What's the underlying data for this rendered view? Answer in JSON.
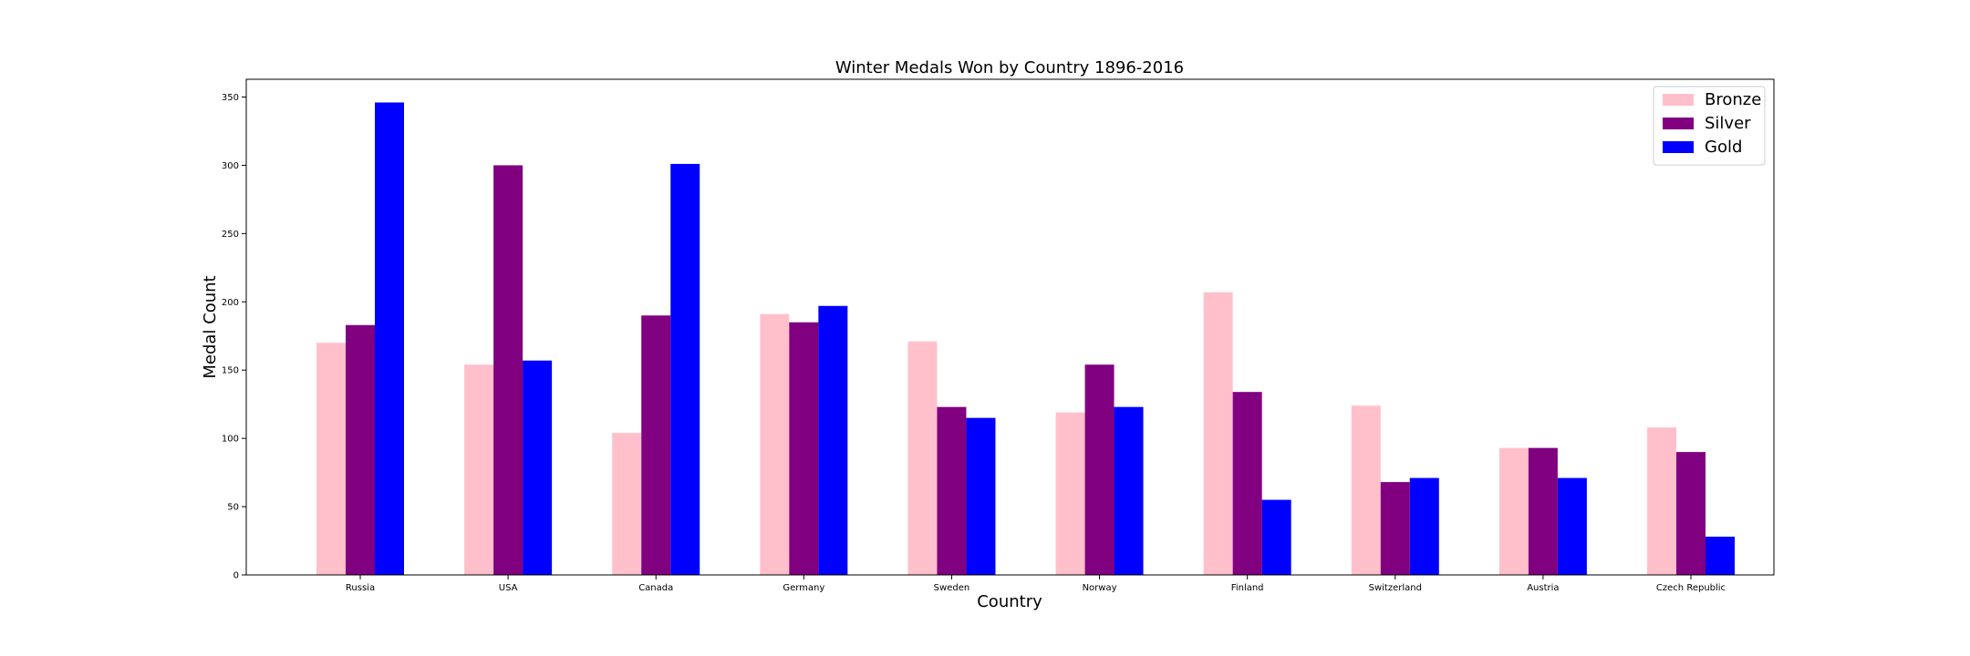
{
  "chart_data": {
    "type": "bar",
    "title": "Winter Medals Won by Country 1896-2016",
    "xlabel": "Country",
    "ylabel": "Medal Count",
    "categories": [
      "Russia",
      "USA",
      "Canada",
      "Germany",
      "Sweden",
      "Norway",
      "Finland",
      "Switzerland",
      "Austria",
      "Czech Republic"
    ],
    "series": [
      {
        "name": "Bronze",
        "color": "#ffc0cb",
        "values": [
          170,
          154,
          104,
          191,
          171,
          119,
          207,
          124,
          93,
          108
        ]
      },
      {
        "name": "Silver",
        "color": "#800080",
        "values": [
          183,
          300,
          190,
          185,
          123,
          154,
          134,
          68,
          93,
          90
        ]
      },
      {
        "name": "Gold",
        "color": "#0000ff",
        "values": [
          346,
          157,
          301,
          197,
          115,
          123,
          55,
          71,
          71,
          28
        ]
      }
    ],
    "ylim": [
      0,
      363
    ],
    "yticks": [
      0,
      50,
      100,
      150,
      200,
      250,
      300,
      350
    ],
    "grid": false,
    "legend_position": "top-right"
  }
}
